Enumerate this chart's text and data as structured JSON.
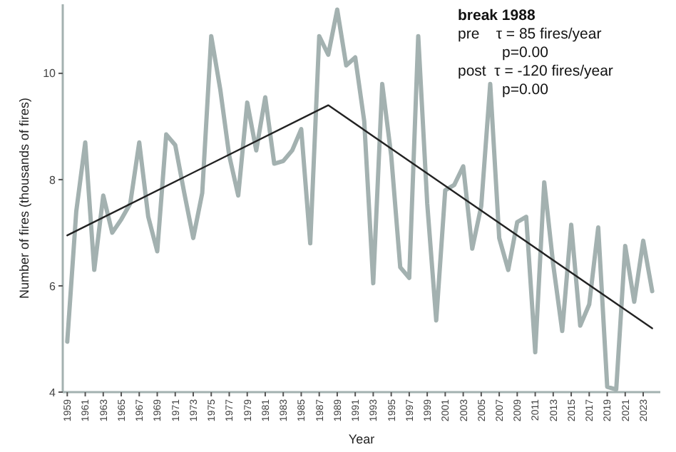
{
  "chart_data": {
    "type": "line",
    "xlabel": "Year",
    "ylabel": "Number of fires (thousands of fires)",
    "x": [
      1959,
      1960,
      1961,
      1962,
      1963,
      1964,
      1965,
      1966,
      1967,
      1968,
      1969,
      1970,
      1971,
      1972,
      1973,
      1974,
      1975,
      1976,
      1977,
      1978,
      1979,
      1980,
      1981,
      1982,
      1983,
      1984,
      1985,
      1986,
      1987,
      1988,
      1989,
      1990,
      1991,
      1992,
      1993,
      1994,
      1995,
      1996,
      1997,
      1998,
      1999,
      2000,
      2001,
      2002,
      2003,
      2004,
      2005,
      2006,
      2007,
      2008,
      2009,
      2010,
      2011,
      2012,
      2013,
      2014,
      2015,
      2016,
      2017,
      2018,
      2019,
      2020,
      2021,
      2022,
      2023,
      2024
    ],
    "series": [
      {
        "color": "#a3b1b0",
        "values": [
          4.95,
          7.4,
          8.7,
          6.3,
          7.7,
          7.0,
          7.25,
          7.55,
          8.7,
          7.3,
          6.65,
          8.85,
          8.65,
          7.75,
          6.9,
          7.75,
          10.7,
          9.7,
          8.45,
          7.7,
          9.45,
          8.55,
          9.55,
          8.3,
          8.35,
          8.55,
          8.95,
          6.8,
          10.7,
          10.35,
          11.2,
          10.15,
          10.3,
          9.1,
          6.05,
          9.8,
          8.45,
          6.35,
          6.15,
          10.7,
          7.55,
          5.35,
          7.8,
          7.9,
          8.25,
          6.7,
          7.5,
          9.8,
          6.9,
          6.3,
          7.2,
          7.3,
          4.75,
          7.95,
          6.4,
          5.15,
          7.15,
          5.25,
          5.65,
          7.1,
          4.1,
          4.05,
          6.75,
          5.7,
          6.85,
          5.9
        ]
      },
      {
        "type": "line",
        "color": "#222222",
        "x": [
          1959,
          1988,
          2024
        ],
        "values": [
          6.95,
          9.4,
          5.2
        ]
      }
    ],
    "xlim": [
      1958.5,
      2024.9
    ],
    "ylim": [
      4,
      11.3
    ],
    "xticks": [
      1959,
      1961,
      1963,
      1965,
      1967,
      1969,
      1971,
      1973,
      1975,
      1977,
      1979,
      1981,
      1983,
      1985,
      1987,
      1989,
      1991,
      1993,
      1995,
      1997,
      1999,
      2001,
      2003,
      2005,
      2007,
      2009,
      2011,
      2013,
      2015,
      2017,
      2019,
      2021,
      2023
    ],
    "yticks": [
      4,
      6,
      8,
      10
    ],
    "grid": false,
    "annotations": [
      "break 1988",
      "pre    τ = 85 fires/year",
      "p=0.00",
      "post  τ = -120 fires/year",
      "p=0.00"
    ]
  }
}
